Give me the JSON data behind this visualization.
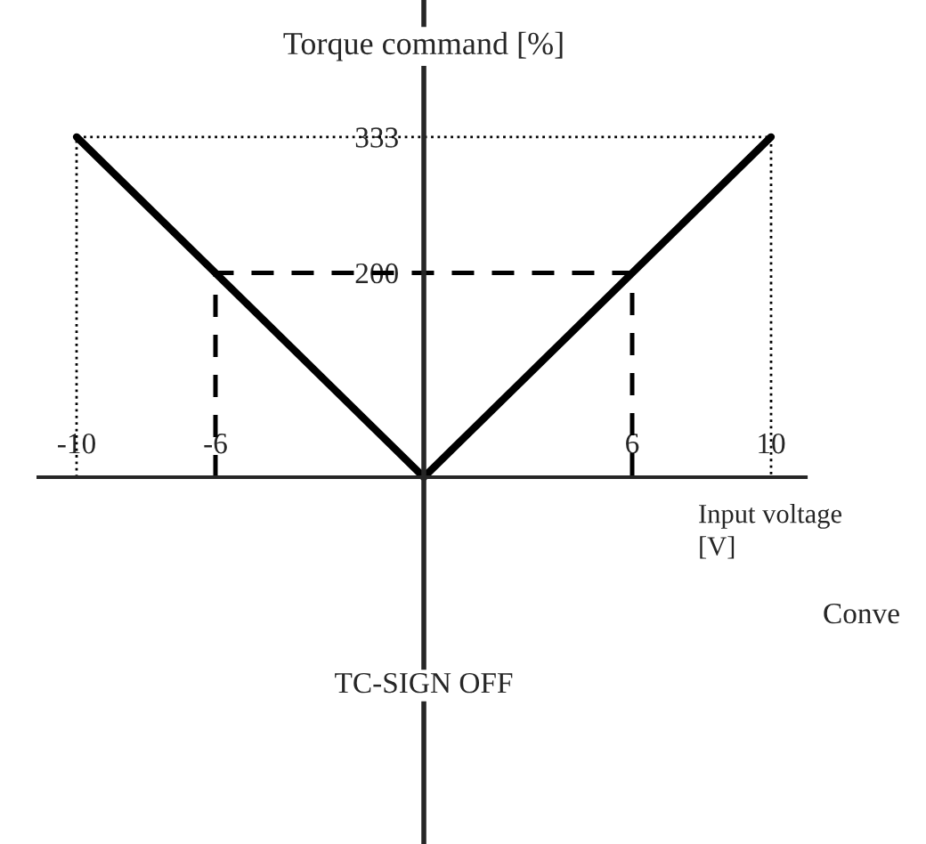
{
  "chart_data": {
    "type": "line",
    "xlabel": "Input voltage\n[V]",
    "ylabel": "Torque command [%]",
    "xlim": [
      -11.1,
      11.0
    ],
    "ylim": [
      -359,
      467
    ],
    "xticks": [
      {
        "value": -10,
        "label": "-10"
      },
      {
        "value": -6,
        "label": "-6"
      },
      {
        "value": 6,
        "label": "6"
      },
      {
        "value": 10,
        "label": "10"
      }
    ],
    "yticks": [
      200,
      333
    ],
    "series": [
      {
        "color": "#000000",
        "x": [
          -10,
          0,
          10
        ],
        "values": [
          333,
          0,
          333
        ],
        "line_style": "solid"
      },
      {
        "color": "#000000",
        "x": [
          -6,
          -6,
          6,
          6
        ],
        "values": [
          0,
          200,
          200,
          0
        ],
        "line_style": "dashed"
      },
      {
        "color": "#000000",
        "x": [
          -10,
          -10,
          10,
          10
        ],
        "values": [
          0,
          333,
          333,
          0
        ],
        "line_style": "dotted"
      }
    ],
    "annotations": [
      "TC-SIGN OFF",
      "Conve"
    ],
    "grid": false,
    "legend": false,
    "marker": "none"
  }
}
